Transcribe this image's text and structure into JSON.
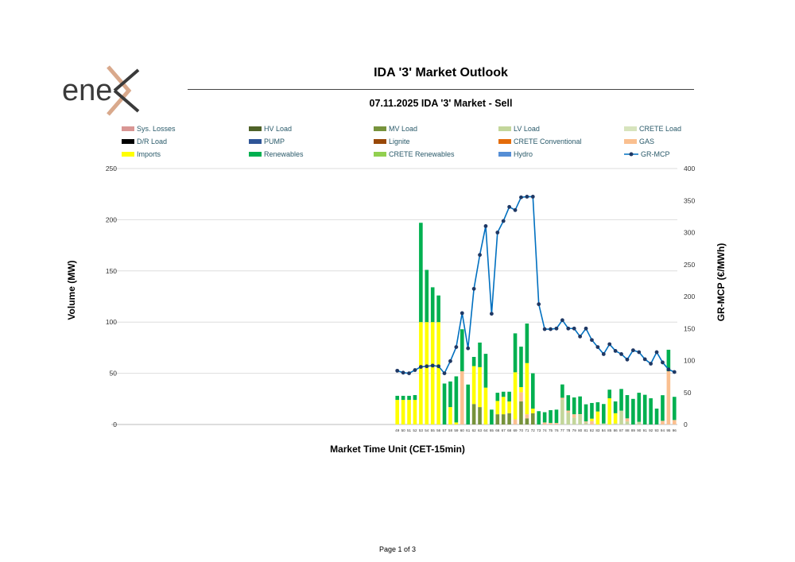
{
  "logo": {
    "text": "enex"
  },
  "header": {
    "title": "IDA '3' Market Outlook",
    "subtitle": "07.11.2025  IDA '3' Market - Sell"
  },
  "footer": {
    "page": "Page 1 of 3"
  },
  "legend": [
    {
      "name": "Sys. Losses",
      "color": "#D99694"
    },
    {
      "name": "HV Load",
      "color": "#4F6228"
    },
    {
      "name": "MV Load",
      "color": "#77933C"
    },
    {
      "name": "LV Load",
      "color": "#C3D69B"
    },
    {
      "name": "CRETE Load",
      "color": "#D7E4BD"
    },
    {
      "name": "D/R Load",
      "color": "#000000"
    },
    {
      "name": "PUMP",
      "color": "#2F5597"
    },
    {
      "name": "Lignite",
      "color": "#984807"
    },
    {
      "name": "CRETE Conventional",
      "color": "#E46C0A"
    },
    {
      "name": "GAS",
      "color": "#FAC090"
    },
    {
      "name": "Imports",
      "color": "#FFFF00"
    },
    {
      "name": "Renewables",
      "color": "#00B050"
    },
    {
      "name": "CRETE Renewables",
      "color": "#92D050"
    },
    {
      "name": "Hydro",
      "color": "#558ED5"
    },
    {
      "name": "GR-MCP",
      "color": "#0070C0",
      "type": "line",
      "marker_color": "#1F3864"
    }
  ],
  "chart_data": {
    "type": "bar",
    "stacked": true,
    "xlabel": "Market Time Unit (CET-15min)",
    "ylabel": "Volume (MW)",
    "y2label": "GR-MCP (€/MWh)",
    "x_range": [
      1,
      96
    ],
    "ylim": [
      0,
      250
    ],
    "y2lim": [
      0,
      400
    ],
    "yticks": [
      0,
      50,
      100,
      150,
      200,
      250
    ],
    "y2ticks": [
      0,
      50,
      100,
      150,
      200,
      250,
      300,
      350,
      400
    ],
    "grid": true,
    "legend_position": "top",
    "categories": [
      "49",
      "50",
      "51",
      "52",
      "53",
      "54",
      "55",
      "56",
      "57",
      "58",
      "59",
      "60",
      "61",
      "62",
      "63",
      "64",
      "65",
      "66",
      "67",
      "68",
      "69",
      "70",
      "71",
      "72",
      "73",
      "74",
      "75",
      "76",
      "77",
      "78",
      "79",
      "80",
      "81",
      "82",
      "83",
      "84",
      "85",
      "86",
      "87",
      "88",
      "89",
      "90",
      "91",
      "92",
      "93",
      "94",
      "95",
      "96"
    ],
    "series": [
      {
        "name": "MV Load",
        "color": "#77933C",
        "values": [
          0,
          0,
          0,
          0,
          0,
          0,
          0,
          0,
          0,
          0,
          0,
          0,
          0,
          20,
          17,
          0,
          0,
          10,
          10,
          11,
          0,
          22.5,
          6,
          11,
          0,
          0,
          0,
          0,
          0,
          0,
          0,
          0,
          0,
          0,
          0,
          0,
          0,
          0,
          0,
          0,
          0,
          0,
          0,
          0,
          0,
          0,
          0,
          0
        ]
      },
      {
        "name": "LV Load",
        "color": "#C3D69B",
        "values": [
          0,
          0,
          0,
          0,
          0,
          0,
          0,
          0,
          0,
          0,
          0,
          0,
          0,
          0,
          0,
          0,
          0,
          0,
          0,
          0,
          0,
          0,
          0,
          0,
          0,
          0,
          0,
          0,
          24.6,
          11.6,
          6.7,
          9.6,
          2,
          0,
          0,
          1,
          0,
          1,
          13.5,
          3,
          0,
          2.6,
          0,
          0,
          0,
          0,
          0,
          0
        ]
      },
      {
        "name": "GAS",
        "color": "#FAC090",
        "values": [
          0,
          0,
          0,
          0,
          0,
          0,
          0,
          0,
          0,
          0,
          0,
          52,
          0,
          0,
          0,
          0,
          0,
          0,
          0,
          0,
          5,
          9,
          4,
          0,
          0,
          2,
          1.5,
          1.5,
          1.5,
          2,
          3.3,
          0.5,
          1,
          3.4,
          0,
          0,
          0,
          0,
          0,
          3,
          0,
          0,
          0,
          0,
          0,
          3.6,
          52,
          4.4
        ]
      },
      {
        "name": "Imports",
        "color": "#FFFF00",
        "values": [
          24,
          24,
          24,
          24,
          100,
          100,
          100,
          100,
          0,
          17,
          2,
          0,
          0,
          37,
          39,
          36,
          0,
          13,
          17,
          11.5,
          46,
          5,
          50,
          4.5,
          0,
          0,
          0,
          0,
          0,
          0,
          0,
          0,
          0,
          2.3,
          12.7,
          0,
          25.6,
          10,
          0,
          0,
          0,
          0,
          0,
          0,
          0,
          0,
          0,
          0
        ]
      },
      {
        "name": "Renewables",
        "color": "#00B050",
        "values": [
          4,
          4,
          4,
          4.7,
          97,
          51,
          34,
          26,
          40,
          25,
          45,
          41,
          39,
          9,
          24,
          33,
          14.5,
          8,
          5,
          9.5,
          38,
          39.5,
          38.6,
          34.5,
          13,
          10,
          12.5,
          13,
          13,
          15,
          16.4,
          17.3,
          16.7,
          15.3,
          9,
          19,
          8.4,
          11.5,
          21.2,
          22.7,
          25,
          28.4,
          29,
          25.6,
          15.5,
          25,
          21,
          22.6
        ]
      }
    ],
    "line_series": {
      "name": "GR-MCP",
      "axis": "right",
      "color": "#0070C0",
      "marker_color": "#1F3864",
      "values": [
        84,
        81,
        80,
        85,
        90,
        91,
        92,
        91,
        80,
        99,
        121,
        174,
        119,
        212,
        265,
        310,
        173,
        300,
        318,
        340,
        335,
        355,
        356,
        356,
        188,
        149,
        149,
        150,
        163,
        150,
        150,
        137.5,
        150,
        132,
        121,
        110,
        125.5,
        115,
        110,
        101.5,
        116,
        113,
        102,
        95,
        113,
        97,
        86,
        82
      ]
    }
  }
}
